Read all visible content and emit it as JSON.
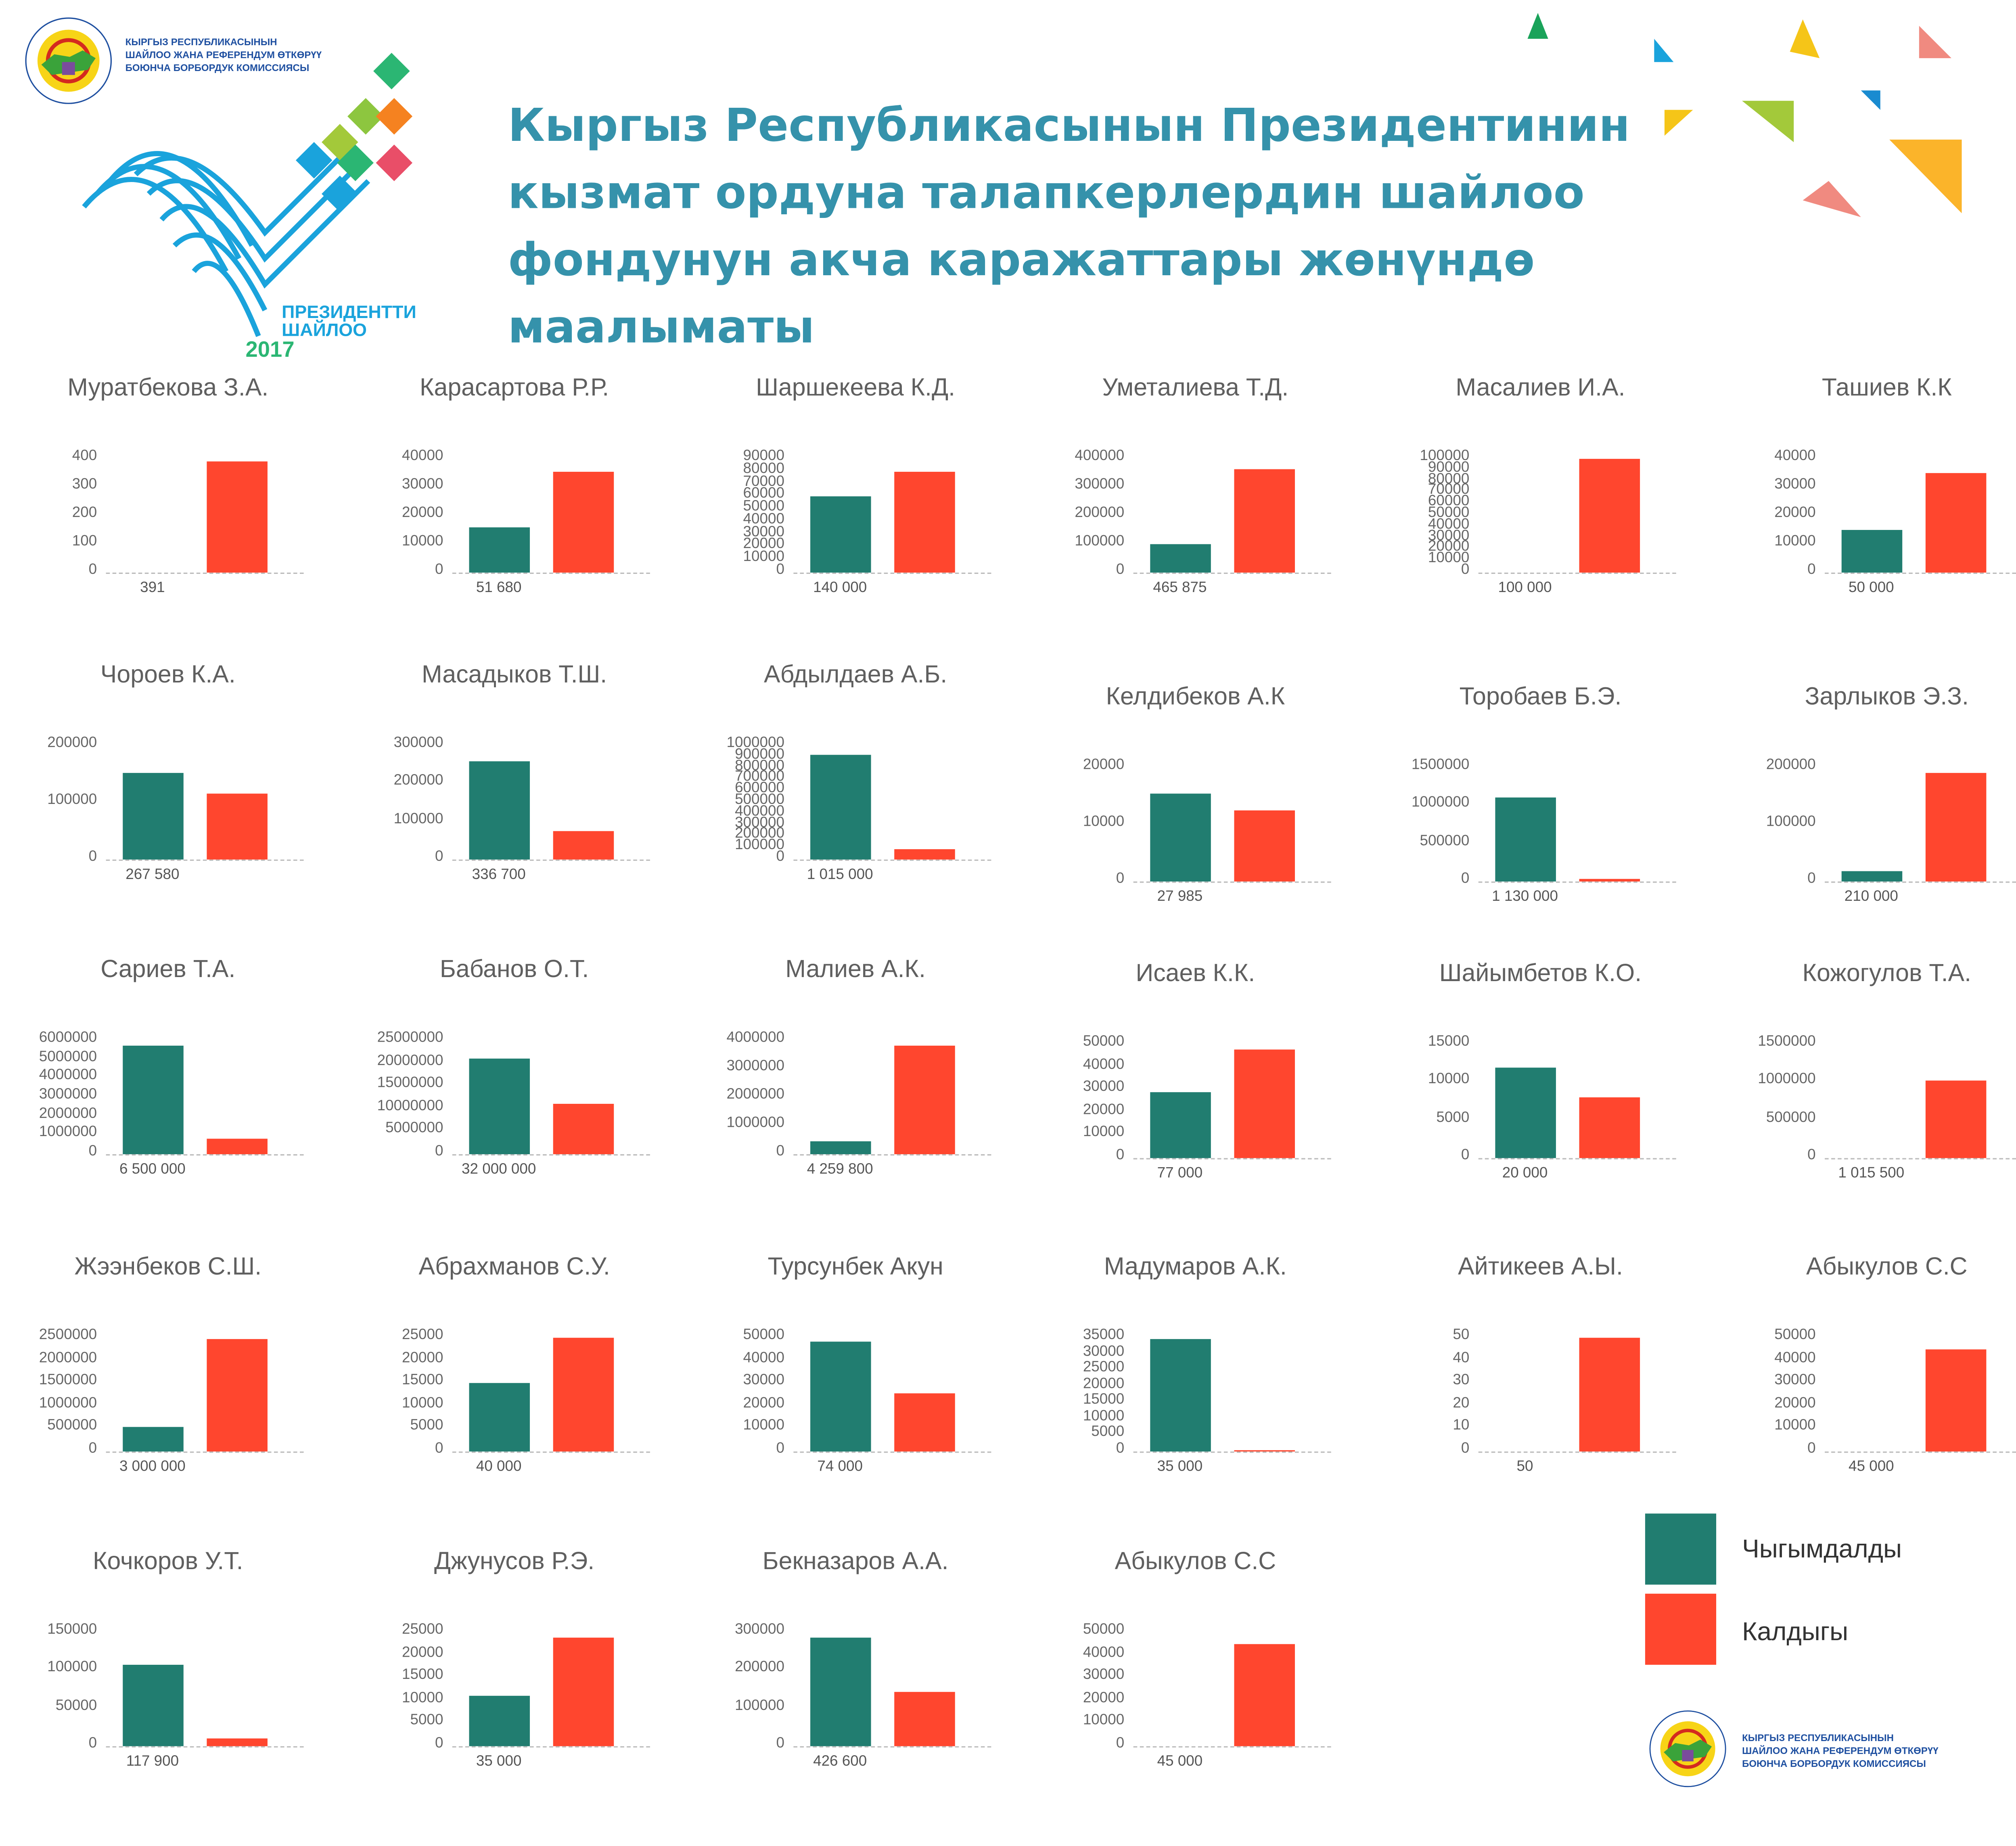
{
  "header": {
    "org_name_lines": [
      "КЫРГЫЗ РЕСПУБЛИКАСЫНЫН",
      "ШАЙЛОО ЖАНА РЕФЕРЕНДУМ ӨТКӨРҮҮ",
      "БОЮНЧА БОРБОРДУК КОМИССИЯСЫ"
    ],
    "seal_ring_text": "ШАЙЛОО ЖАНА РЕФЕРЕНДУМ ӨТКӨРҮҮ БОЮНЧА БОРБОРДУК КОМИССИЯ • КЫРГЫЗ РЕСПУБЛИКАСЫ •",
    "election_logo_text": [
      "ПРЕЗИДЕНТТИ",
      "ШАЙЛОО",
      "2017"
    ],
    "title": "Кыргыз Республикасынын Президентинин кызмат ордуна талапкерлердин шайлоо фондунун акча каражаттары жөнүндө маалыматы"
  },
  "colors": {
    "spent": "#217d70",
    "remaining": "#ff462e",
    "title": "#3592ab",
    "org_text": "#1e4fa0"
  },
  "legend": {
    "items": [
      {
        "label": "Чыгымдалды",
        "color": "#217d70"
      },
      {
        "label": "Калдыгы",
        "color": "#ff462e"
      }
    ]
  },
  "footer": {
    "org_name_lines": [
      "КЫРГЫЗ РЕСПУБЛИКАСЫНЫН",
      "ШАЙЛОО ЖАНА РЕФЕРЕНДУМ ӨТКӨРҮҮ",
      "БОЮНЧА БОРБОРДУК КОМИССИЯСЫ"
    ]
  },
  "chart_data": [
    {
      "type": "bar",
      "title": "Муратбекова З.А.",
      "categories": [
        "Чыгымдалды",
        "Калдыгы"
      ],
      "values": [
        0,
        391
      ],
      "total": "391",
      "yticks": [
        0,
        100,
        200,
        300,
        400
      ],
      "ylim": [
        0,
        400
      ]
    },
    {
      "type": "bar",
      "title": "Карасартова Р.Р.",
      "categories": [
        "Чыгымдалды",
        "Калдыгы"
      ],
      "values": [
        16000,
        35680
      ],
      "total": "51 680",
      "yticks": [
        0,
        10000,
        20000,
        30000,
        40000
      ],
      "ylim": [
        0,
        40000
      ]
    },
    {
      "type": "bar",
      "title": "Шаршекеева К.Д.",
      "categories": [
        "Чыгымдалды",
        "Калдыгы"
      ],
      "values": [
        60000,
        80000
      ],
      "total": "140 000",
      "yticks": [
        0,
        10000,
        20000,
        30000,
        40000,
        50000,
        60000,
        70000,
        80000,
        90000
      ],
      "ylim": [
        0,
        90000
      ]
    },
    {
      "type": "bar",
      "title": "Уметалиева Т.Д.",
      "categories": [
        "Чыгымдалды",
        "Калдыгы"
      ],
      "values": [
        100000,
        365875
      ],
      "total": "465 875",
      "yticks": [
        0,
        100000,
        200000,
        300000,
        400000
      ],
      "ylim": [
        0,
        400000
      ]
    },
    {
      "type": "bar",
      "title": "Масалиев И.А.",
      "categories": [
        "Чыгымдалды",
        "Калдыгы"
      ],
      "values": [
        0,
        100000
      ],
      "total": "100 000",
      "yticks": [
        0,
        10000,
        20000,
        30000,
        40000,
        50000,
        60000,
        70000,
        80000,
        90000,
        100000
      ],
      "ylim": [
        0,
        100000
      ]
    },
    {
      "type": "bar",
      "title": "Ташиев К.К",
      "categories": [
        "Чыгымдалды",
        "Калдыгы"
      ],
      "values": [
        15000,
        35000
      ],
      "total": "50 000",
      "yticks": [
        0,
        10000,
        20000,
        30000,
        40000
      ],
      "ylim": [
        0,
        40000
      ]
    },
    {
      "type": "bar",
      "title": "Чороев К.А.",
      "categories": [
        "Чыгымдалды",
        "Калдыгы"
      ],
      "values": [
        152000,
        115580
      ],
      "total": "267 580",
      "yticks": [
        0,
        100000,
        200000
      ],
      "ylim": [
        0,
        200000
      ]
    },
    {
      "type": "bar",
      "title": "Масадыков Т.Ш.",
      "categories": [
        "Чыгымдалды",
        "Калдыгы"
      ],
      "values": [
        260000,
        76700
      ],
      "total": "336 700",
      "yticks": [
        0,
        100000,
        200000,
        300000
      ],
      "ylim": [
        0,
        300000
      ]
    },
    {
      "type": "bar",
      "title": "Абдылдаев А.Б.",
      "categories": [
        "Чыгымдалды",
        "Калдыгы"
      ],
      "values": [
        920000,
        95000
      ],
      "total": "1 015 000",
      "yticks": [
        0,
        100000,
        200000,
        300000,
        400000,
        500000,
        600000,
        700000,
        800000,
        900000,
        1000000
      ],
      "ylim": [
        0,
        1000000
      ]
    },
    {
      "type": "bar",
      "title": "Келдибеков А.К",
      "categories": [
        "Чыгымдалды",
        "Калдыгы"
      ],
      "values": [
        15500,
        12485
      ],
      "total": "27 985",
      "yticks": [
        0,
        10000,
        20000
      ],
      "ylim": [
        0,
        20000
      ]
    },
    {
      "type": "bar",
      "title": "Торобаев Б.Э.",
      "categories": [
        "Чыгымдалды",
        "Калдыгы"
      ],
      "values": [
        1100000,
        30000
      ],
      "total": "1 130 000",
      "yticks": [
        0,
        500000,
        1000000,
        1500000
      ],
      "ylim": [
        0,
        1500000
      ]
    },
    {
      "type": "bar",
      "title": "Зарлыков Э.З.",
      "categories": [
        "Чыгымдалды",
        "Калдыгы"
      ],
      "values": [
        18000,
        192000
      ],
      "total": "210 000",
      "yticks": [
        0,
        100000,
        200000
      ],
      "ylim": [
        0,
        200000
      ]
    },
    {
      "type": "bar",
      "title": "Сариев Т.А.",
      "categories": [
        "Чыгымдалды",
        "Калдыгы"
      ],
      "values": [
        5700000,
        800000
      ],
      "total": "6 500 000",
      "yticks": [
        0,
        1000000,
        2000000,
        3000000,
        4000000,
        5000000,
        6000000
      ],
      "ylim": [
        0,
        6000000
      ]
    },
    {
      "type": "bar",
      "title": "Бабанов О.Т.",
      "categories": [
        "Чыгымдалды",
        "Калдыгы"
      ],
      "values": [
        21000000,
        11000000
      ],
      "total": "32 000 000",
      "yticks": [
        0,
        5000000,
        10000000,
        15000000,
        20000000,
        25000000
      ],
      "ylim": [
        0,
        25000000
      ]
    },
    {
      "type": "bar",
      "title": "Малиев А.К.",
      "categories": [
        "Чыгымдалды",
        "Калдыгы"
      ],
      "values": [
        450000,
        3809800
      ],
      "total": "4 259 800",
      "yticks": [
        0,
        1000000,
        2000000,
        3000000,
        4000000
      ],
      "ylim": [
        0,
        4000000
      ]
    },
    {
      "type": "bar",
      "title": "Исаев К.К.",
      "categories": [
        "Чыгымдалды",
        "Калдыгы"
      ],
      "values": [
        29000,
        48000
      ],
      "total": "77 000",
      "yticks": [
        0,
        10000,
        20000,
        30000,
        40000,
        50000
      ],
      "ylim": [
        0,
        50000
      ]
    },
    {
      "type": "bar",
      "title": "Шайымбетов К.О.",
      "categories": [
        "Чыгымдалды",
        "Калдыгы"
      ],
      "values": [
        12000,
        8000
      ],
      "total": "20 000",
      "yticks": [
        0,
        5000,
        10000,
        15000
      ],
      "ylim": [
        0,
        15000
      ]
    },
    {
      "type": "bar",
      "title": "Кожогулов Т.А.",
      "categories": [
        "Чыгымдалды",
        "Калдыгы"
      ],
      "values": [
        500,
        1015000
      ],
      "total": "1 015 500",
      "yticks": [
        0,
        500000,
        1000000,
        1500000
      ],
      "ylim": [
        0,
        1500000
      ]
    },
    {
      "type": "bar",
      "title": "Жээнбеков С.Ш.",
      "categories": [
        "Чыгымдалды",
        "Калдыгы"
      ],
      "values": [
        530000,
        2470000
      ],
      "total": "3 000 000",
      "yticks": [
        0,
        500000,
        1000000,
        1500000,
        2000000,
        2500000
      ],
      "ylim": [
        0,
        2500000
      ]
    },
    {
      "type": "bar",
      "title": "Абрахманов С.У.",
      "categories": [
        "Чыгымдалды",
        "Калдыгы"
      ],
      "values": [
        15000,
        25000
      ],
      "total": "40 000",
      "yticks": [
        0,
        5000,
        10000,
        15000,
        20000,
        25000
      ],
      "ylim": [
        0,
        25000
      ]
    },
    {
      "type": "bar",
      "title": "Турсунбек Акун",
      "categories": [
        "Чыгымдалды",
        "Калдыгы"
      ],
      "values": [
        48500,
        25500
      ],
      "total": "74 000",
      "yticks": [
        0,
        10000,
        20000,
        30000,
        40000,
        50000
      ],
      "ylim": [
        0,
        50000
      ]
    },
    {
      "type": "bar",
      "title": "Мадумаров А.К.",
      "categories": [
        "Чыгымдалды",
        "Калдыгы"
      ],
      "values": [
        34600,
        400
      ],
      "total": "35 000",
      "yticks": [
        0,
        5000,
        10000,
        15000,
        20000,
        25000,
        30000,
        35000
      ],
      "ylim": [
        0,
        35000
      ]
    },
    {
      "type": "bar",
      "title": "Айтикеев А.Ы.",
      "categories": [
        "Чыгымдалды",
        "Калдыгы"
      ],
      "values": [
        0,
        50
      ],
      "total": "50",
      "yticks": [
        0,
        10,
        20,
        30,
        40,
        50
      ],
      "ylim": [
        0,
        50
      ]
    },
    {
      "type": "bar",
      "title": "Абыкулов С.С",
      "categories": [
        "Чыгымдалды",
        "Калдыгы"
      ],
      "values": [
        0,
        45000
      ],
      "total": "45 000",
      "yticks": [
        0,
        10000,
        20000,
        30000,
        40000,
        50000
      ],
      "ylim": [
        0,
        50000
      ]
    },
    {
      "type": "bar",
      "title": "Кочкоров У.Т.",
      "categories": [
        "Чыгымдалды",
        "Калдыгы"
      ],
      "values": [
        108000,
        9900
      ],
      "total": "117 900",
      "yticks": [
        0,
        50000,
        100000,
        150000
      ],
      "ylim": [
        0,
        150000
      ]
    },
    {
      "type": "bar",
      "title": "Джунусов Р.Э.",
      "categories": [
        "Чыгымдалды",
        "Калдыгы"
      ],
      "values": [
        11000,
        24000
      ],
      "total": "35 000",
      "yticks": [
        0,
        5000,
        10000,
        15000,
        20000,
        25000
      ],
      "ylim": [
        0,
        25000
      ]
    },
    {
      "type": "bar",
      "title": "Бекназаров А.А.",
      "categories": [
        "Чыгымдалды",
        "Калдыгы"
      ],
      "values": [
        285000,
        141600
      ],
      "total": "426 600",
      "yticks": [
        0,
        100000,
        200000,
        300000
      ],
      "ylim": [
        0,
        300000
      ]
    },
    {
      "type": "bar",
      "title": "Абыкулов С.С",
      "categories": [
        "Чыгымдалды",
        "Калдыгы"
      ],
      "values": [
        0,
        45000
      ],
      "total": "45 000",
      "yticks": [
        0,
        10000,
        20000,
        30000,
        40000,
        50000
      ],
      "ylim": [
        0,
        50000
      ]
    }
  ]
}
